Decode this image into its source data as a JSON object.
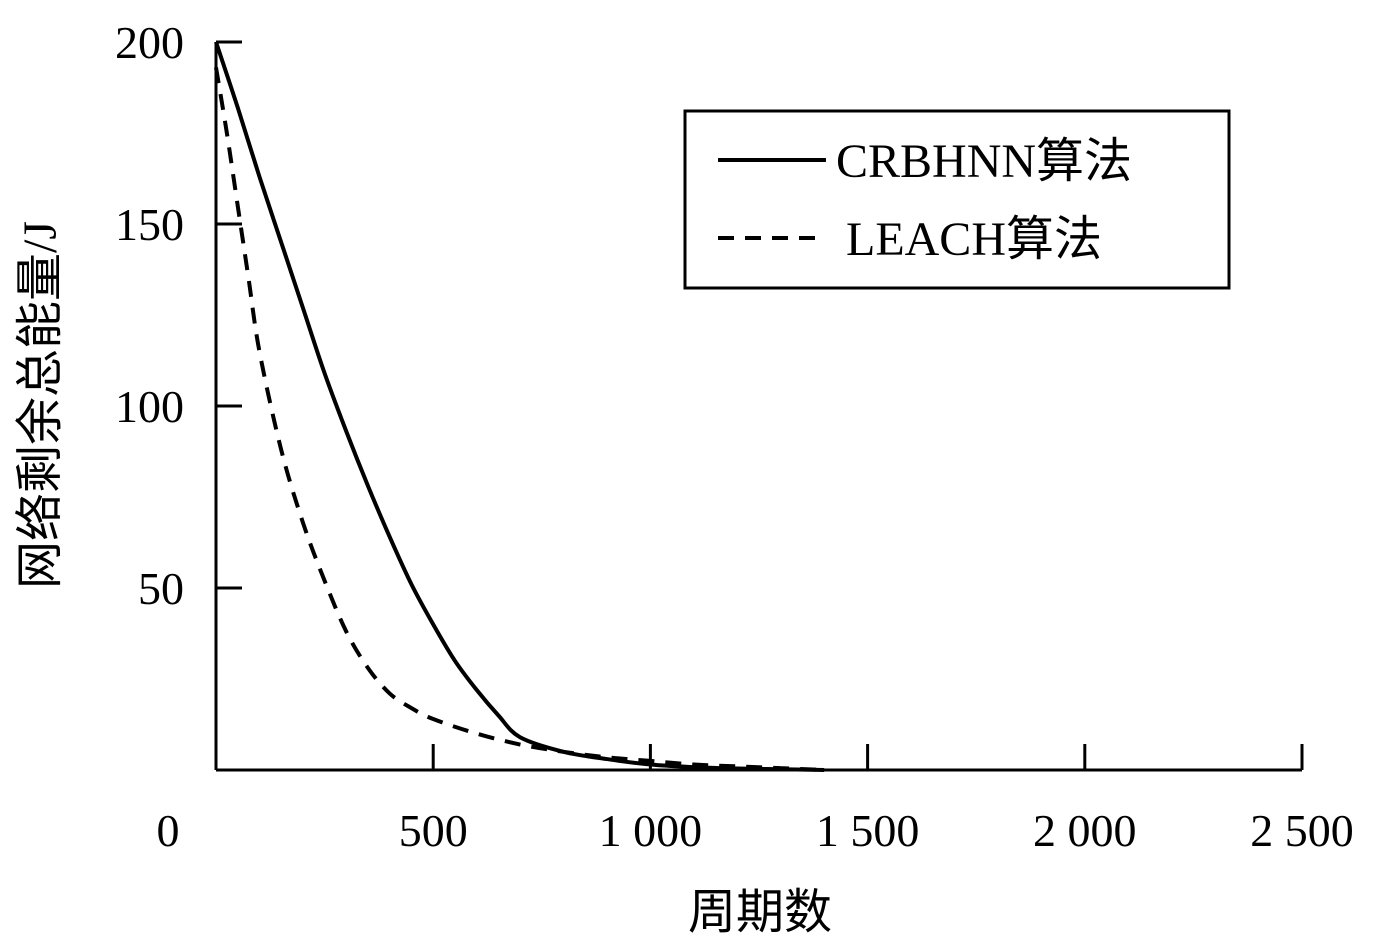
{
  "chart_data": {
    "type": "line",
    "title": "",
    "xlabel": "周期数",
    "ylabel": "网络剩余总能量/J",
    "xlim": [
      0,
      2500
    ],
    "ylim": [
      0,
      200
    ],
    "x_ticks": [
      0,
      500,
      1000,
      1500,
      2000,
      2500
    ],
    "x_tick_labels": [
      "0",
      "500",
      "1 000",
      "1 500",
      "2 000",
      "2 500"
    ],
    "y_ticks": [
      50,
      100,
      150,
      200
    ],
    "y_tick_labels": [
      "50",
      "100",
      "150",
      "200"
    ],
    "grid": false,
    "legend_position": "top-right",
    "series": [
      {
        "name": "CRBHNN算法",
        "style": "solid",
        "color": "#000000",
        "x": [
          0,
          50,
          100,
          150,
          200,
          250,
          300,
          350,
          400,
          450,
          500,
          550,
          600,
          650,
          700,
          800,
          900,
          1000,
          1100,
          1200,
          1300,
          1400
        ],
        "y": [
          200,
          182,
          163,
          145,
          127,
          109,
          93,
          78,
          64,
          51,
          40,
          30,
          22,
          15,
          9,
          5,
          3,
          1.5,
          0.8,
          0.4,
          0.2,
          0
        ]
      },
      {
        "name": "LEACH算法",
        "style": "dashed",
        "color": "#000000",
        "x": [
          0,
          25,
          50,
          75,
          100,
          150,
          200,
          250,
          300,
          350,
          400,
          450,
          500,
          600,
          700,
          800,
          900,
          1000,
          1100,
          1200,
          1300,
          1400
        ],
        "y": [
          193,
          175,
          155,
          135,
          115,
          88,
          68,
          52,
          38,
          28,
          21,
          17,
          14,
          10,
          7,
          5,
          3.5,
          2.5,
          1.5,
          1,
          0.5,
          0
        ]
      }
    ]
  }
}
